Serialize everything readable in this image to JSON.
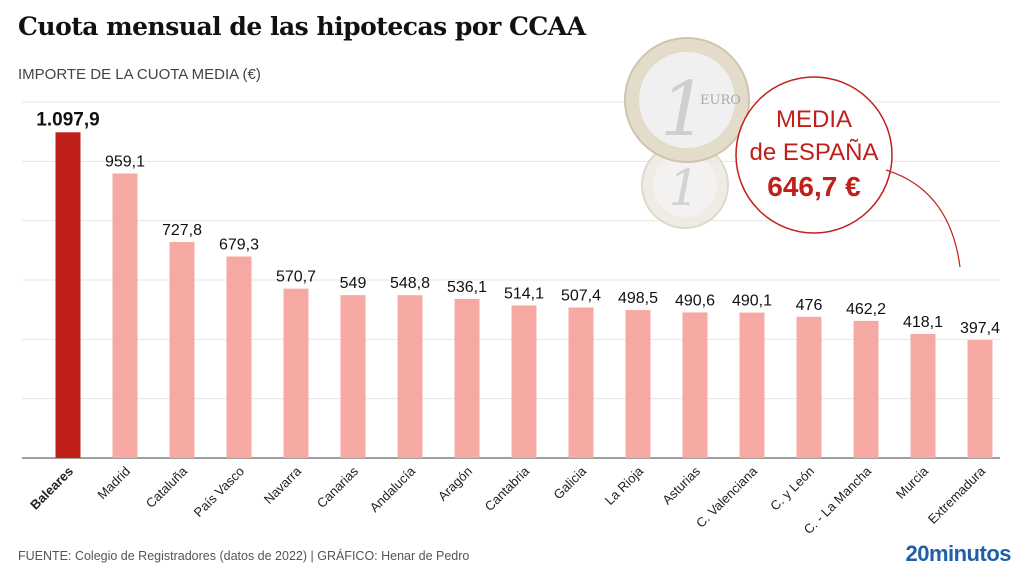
{
  "chart_data": {
    "type": "bar",
    "title": "Cuota mensual de las hipotecas por CCAA",
    "ylabel": "IMPORTE DE LA CUOTA MEDIA (€)",
    "ylim": [
      0,
      1200
    ],
    "grid": true,
    "categories": [
      "Baleares",
      "Madrid",
      "Cataluña",
      "País Vasco",
      "Navarra",
      "Canarias",
      "Andalucía",
      "Aragón",
      "Cantabria",
      "Galicia",
      "La Rioja",
      "Asturias",
      "C. Valenciana",
      "C. y León",
      "C. - La Mancha",
      "Murcia",
      "Extremadura"
    ],
    "values": [
      1097.9,
      959.1,
      727.8,
      679.3,
      570.7,
      549,
      548.8,
      536.1,
      514.1,
      507.4,
      498.5,
      490.6,
      490.1,
      476,
      462.2,
      418.1,
      397.4
    ],
    "value_labels": [
      "1.097,9",
      "959,1",
      "727,8",
      "679,3",
      "570,7",
      "549",
      "548,8",
      "536,1",
      "514,1",
      "507,4",
      "498,5",
      "490,6",
      "490,1",
      "476",
      "462,2",
      "418,1",
      "397,4"
    ],
    "highlight_category": "Baleares",
    "colors": {
      "highlight": "#c0201a",
      "bar": "#f6a9a3",
      "grid": "#e6e6e6",
      "axis": "#666666"
    },
    "annotation": {
      "line1": "MEDIA",
      "line2": "de ESPAÑA",
      "value": "646,7 €",
      "color": "#c0201a"
    }
  },
  "footer": {
    "source": "FUENTE: Colegio de Registradores (datos de 2022)  |  GRÁFICO: Henar de Pedro",
    "logo": "20minutos"
  },
  "decorations": {
    "icon": "euro-coins-icon"
  }
}
